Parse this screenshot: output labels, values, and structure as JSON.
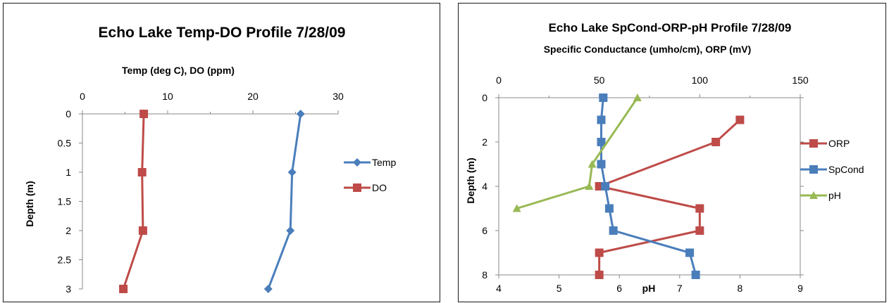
{
  "charts": [
    {
      "type": "line",
      "title": "Echo Lake Temp-DO Profile 7/28/09",
      "xlabel_top": "Temp (deg C), DO (ppm)",
      "ylabel": "Depth (m)",
      "x_top_range": [
        0,
        30
      ],
      "x_top_ticks": [
        "0",
        "10",
        "20",
        "30"
      ],
      "y_range": [
        0,
        3
      ],
      "y_ticks": [
        "0",
        "0.5",
        "1",
        "1.5",
        "2",
        "2.5",
        "3"
      ],
      "y_inverted": true,
      "series": [
        {
          "name": "Temp",
          "color": "#4a7ebb",
          "marker": "diamond",
          "x": [
            25.6,
            24.6,
            24.4,
            21.8
          ],
          "y": [
            0,
            1,
            2,
            3
          ]
        },
        {
          "name": "DO",
          "color": "#be4b48",
          "marker": "square",
          "x": [
            7.2,
            7.0,
            7.1,
            4.8
          ],
          "y": [
            0,
            1,
            2,
            3
          ]
        }
      ],
      "legend": "right"
    },
    {
      "type": "line",
      "title": "Echo Lake SpCond-ORP-pH Profile 7/28/09",
      "xlabel_top": "Specific Conductance (umho/cm), ORP (mV)",
      "xlabel_bottom": "pH",
      "ylabel": "Depth (m)",
      "x_top_range": [
        0,
        150
      ],
      "x_top_ticks": [
        "0",
        "50",
        "100",
        "150"
      ],
      "x_bottom_range": [
        4,
        9
      ],
      "x_bottom_ticks": [
        "4",
        "5",
        "6",
        "7",
        "8",
        "9"
      ],
      "y_range": [
        0,
        8
      ],
      "y_ticks": [
        "0",
        "2",
        "4",
        "6",
        "8"
      ],
      "y_inverted": true,
      "series": [
        {
          "name": "ORP",
          "axis": "top",
          "color": "#be4b48",
          "marker": "square",
          "x": [
            120,
            108,
            50,
            100,
            100,
            50,
            50
          ],
          "y": [
            1,
            2,
            4,
            5,
            6,
            7,
            8
          ]
        },
        {
          "name": "SpCond",
          "axis": "top",
          "color": "#4a7ebb",
          "marker": "square",
          "x": [
            52,
            51,
            51,
            51,
            53,
            55,
            57,
            95,
            98
          ],
          "y": [
            0,
            1,
            2,
            3,
            4,
            5,
            6,
            7,
            8
          ]
        },
        {
          "name": "pH",
          "axis": "bottom",
          "color": "#98b954",
          "marker": "triangle",
          "x": [
            6.3,
            5.55,
            5.5,
            4.3
          ],
          "y": [
            0,
            3,
            4,
            5
          ]
        }
      ],
      "legend": "right"
    }
  ]
}
